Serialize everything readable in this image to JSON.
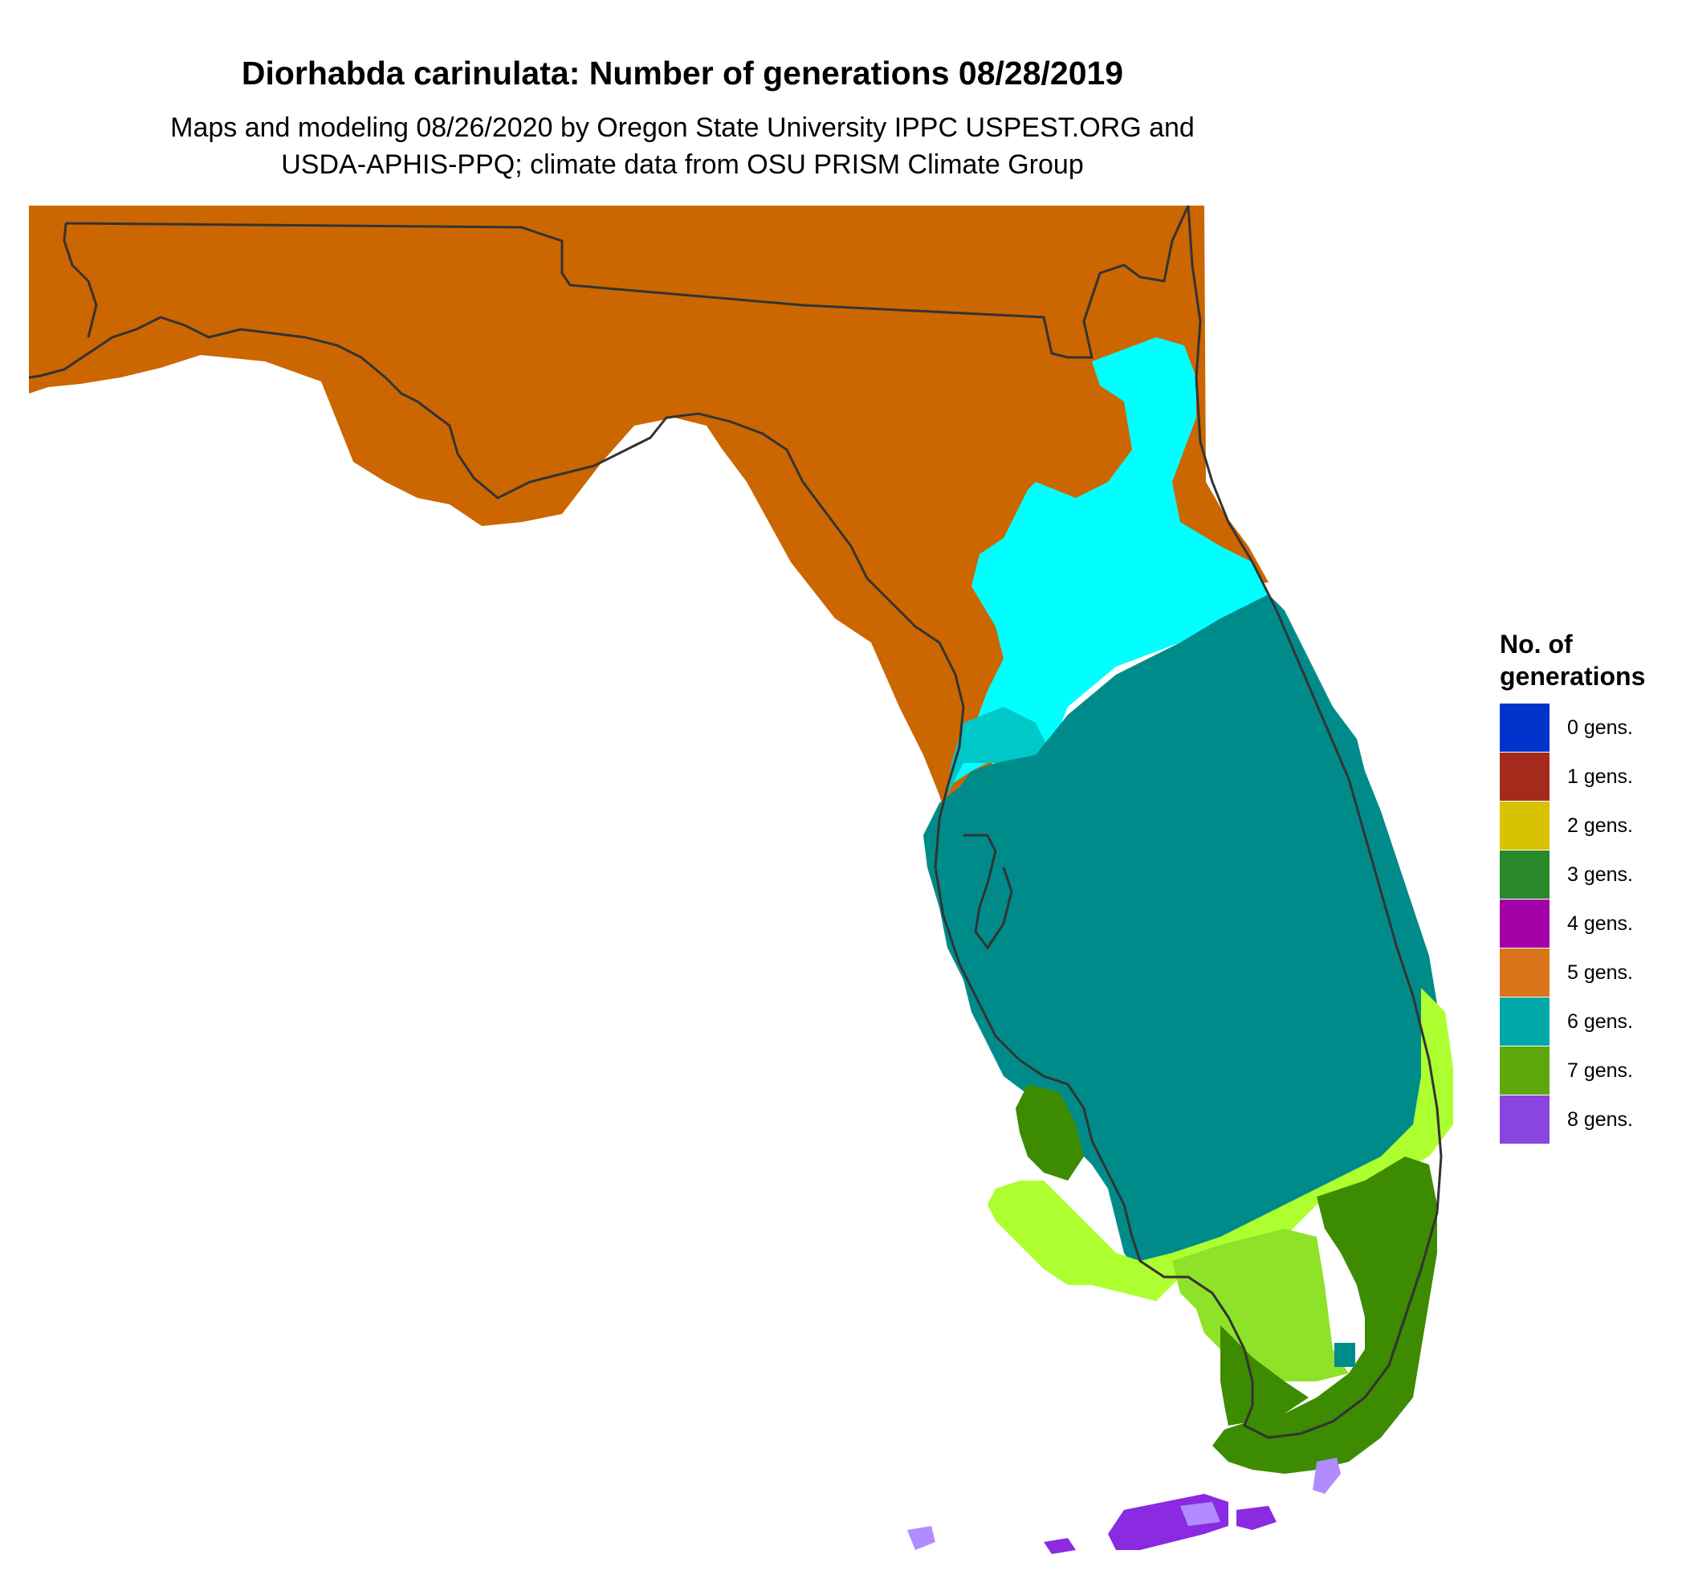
{
  "map": {
    "title": "Diorhabda carinulata: Number of generations 08/28/2019",
    "subtitle_line1": "Maps and modeling 08/26/2020 by Oregon State University IPPC USPEST.ORG and",
    "subtitle_line2": "USDA-APHIS-PPQ; climate data from OSU PRISM Climate Group",
    "region": "Florida",
    "border_color": "#333333"
  },
  "legend": {
    "title_line1": "No. of",
    "title_line2": "generations",
    "items": [
      {
        "label": "0 gens.",
        "color": "#0033cc"
      },
      {
        "label": "1 gens.",
        "color": "#a62a1c"
      },
      {
        "label": "2 gens.",
        "color": "#d9c200"
      },
      {
        "label": "3 gens.",
        "color": "#2a8a2a"
      },
      {
        "label": "4 gens.",
        "color": "#a300a8"
      },
      {
        "label": "5 gens.",
        "color": "#d97518"
      },
      {
        "label": "6 gens.",
        "color": "#00a8a8"
      },
      {
        "label": "7 gens.",
        "color": "#5ea80e"
      },
      {
        "label": "8 gens.",
        "color": "#8a44e0"
      }
    ]
  },
  "zones": {
    "panhandle_north": {
      "gens_label": "5 gens.",
      "color": "#cc6600"
    },
    "north_central_cool": {
      "gens_label": "6 gens.",
      "color": "#00ffff"
    },
    "north_central_mid": {
      "gens_label": "6 gens.",
      "color": "#00c8c8"
    },
    "peninsula_central": {
      "gens_label": "6 gens.",
      "color": "#008b8b"
    },
    "south_light": {
      "gens_label": "7 gens.",
      "color": "#adff2f"
    },
    "south_mid": {
      "gens_label": "7 gens.",
      "color": "#8fe22a"
    },
    "south_dark": {
      "gens_label": "7 gens.",
      "color": "#3d8b00"
    },
    "keys": {
      "gens_label": "8 gens.",
      "color": "#8a2be2"
    },
    "keys_light": {
      "gens_label": "8 gens.",
      "color": "#b08cff"
    }
  }
}
